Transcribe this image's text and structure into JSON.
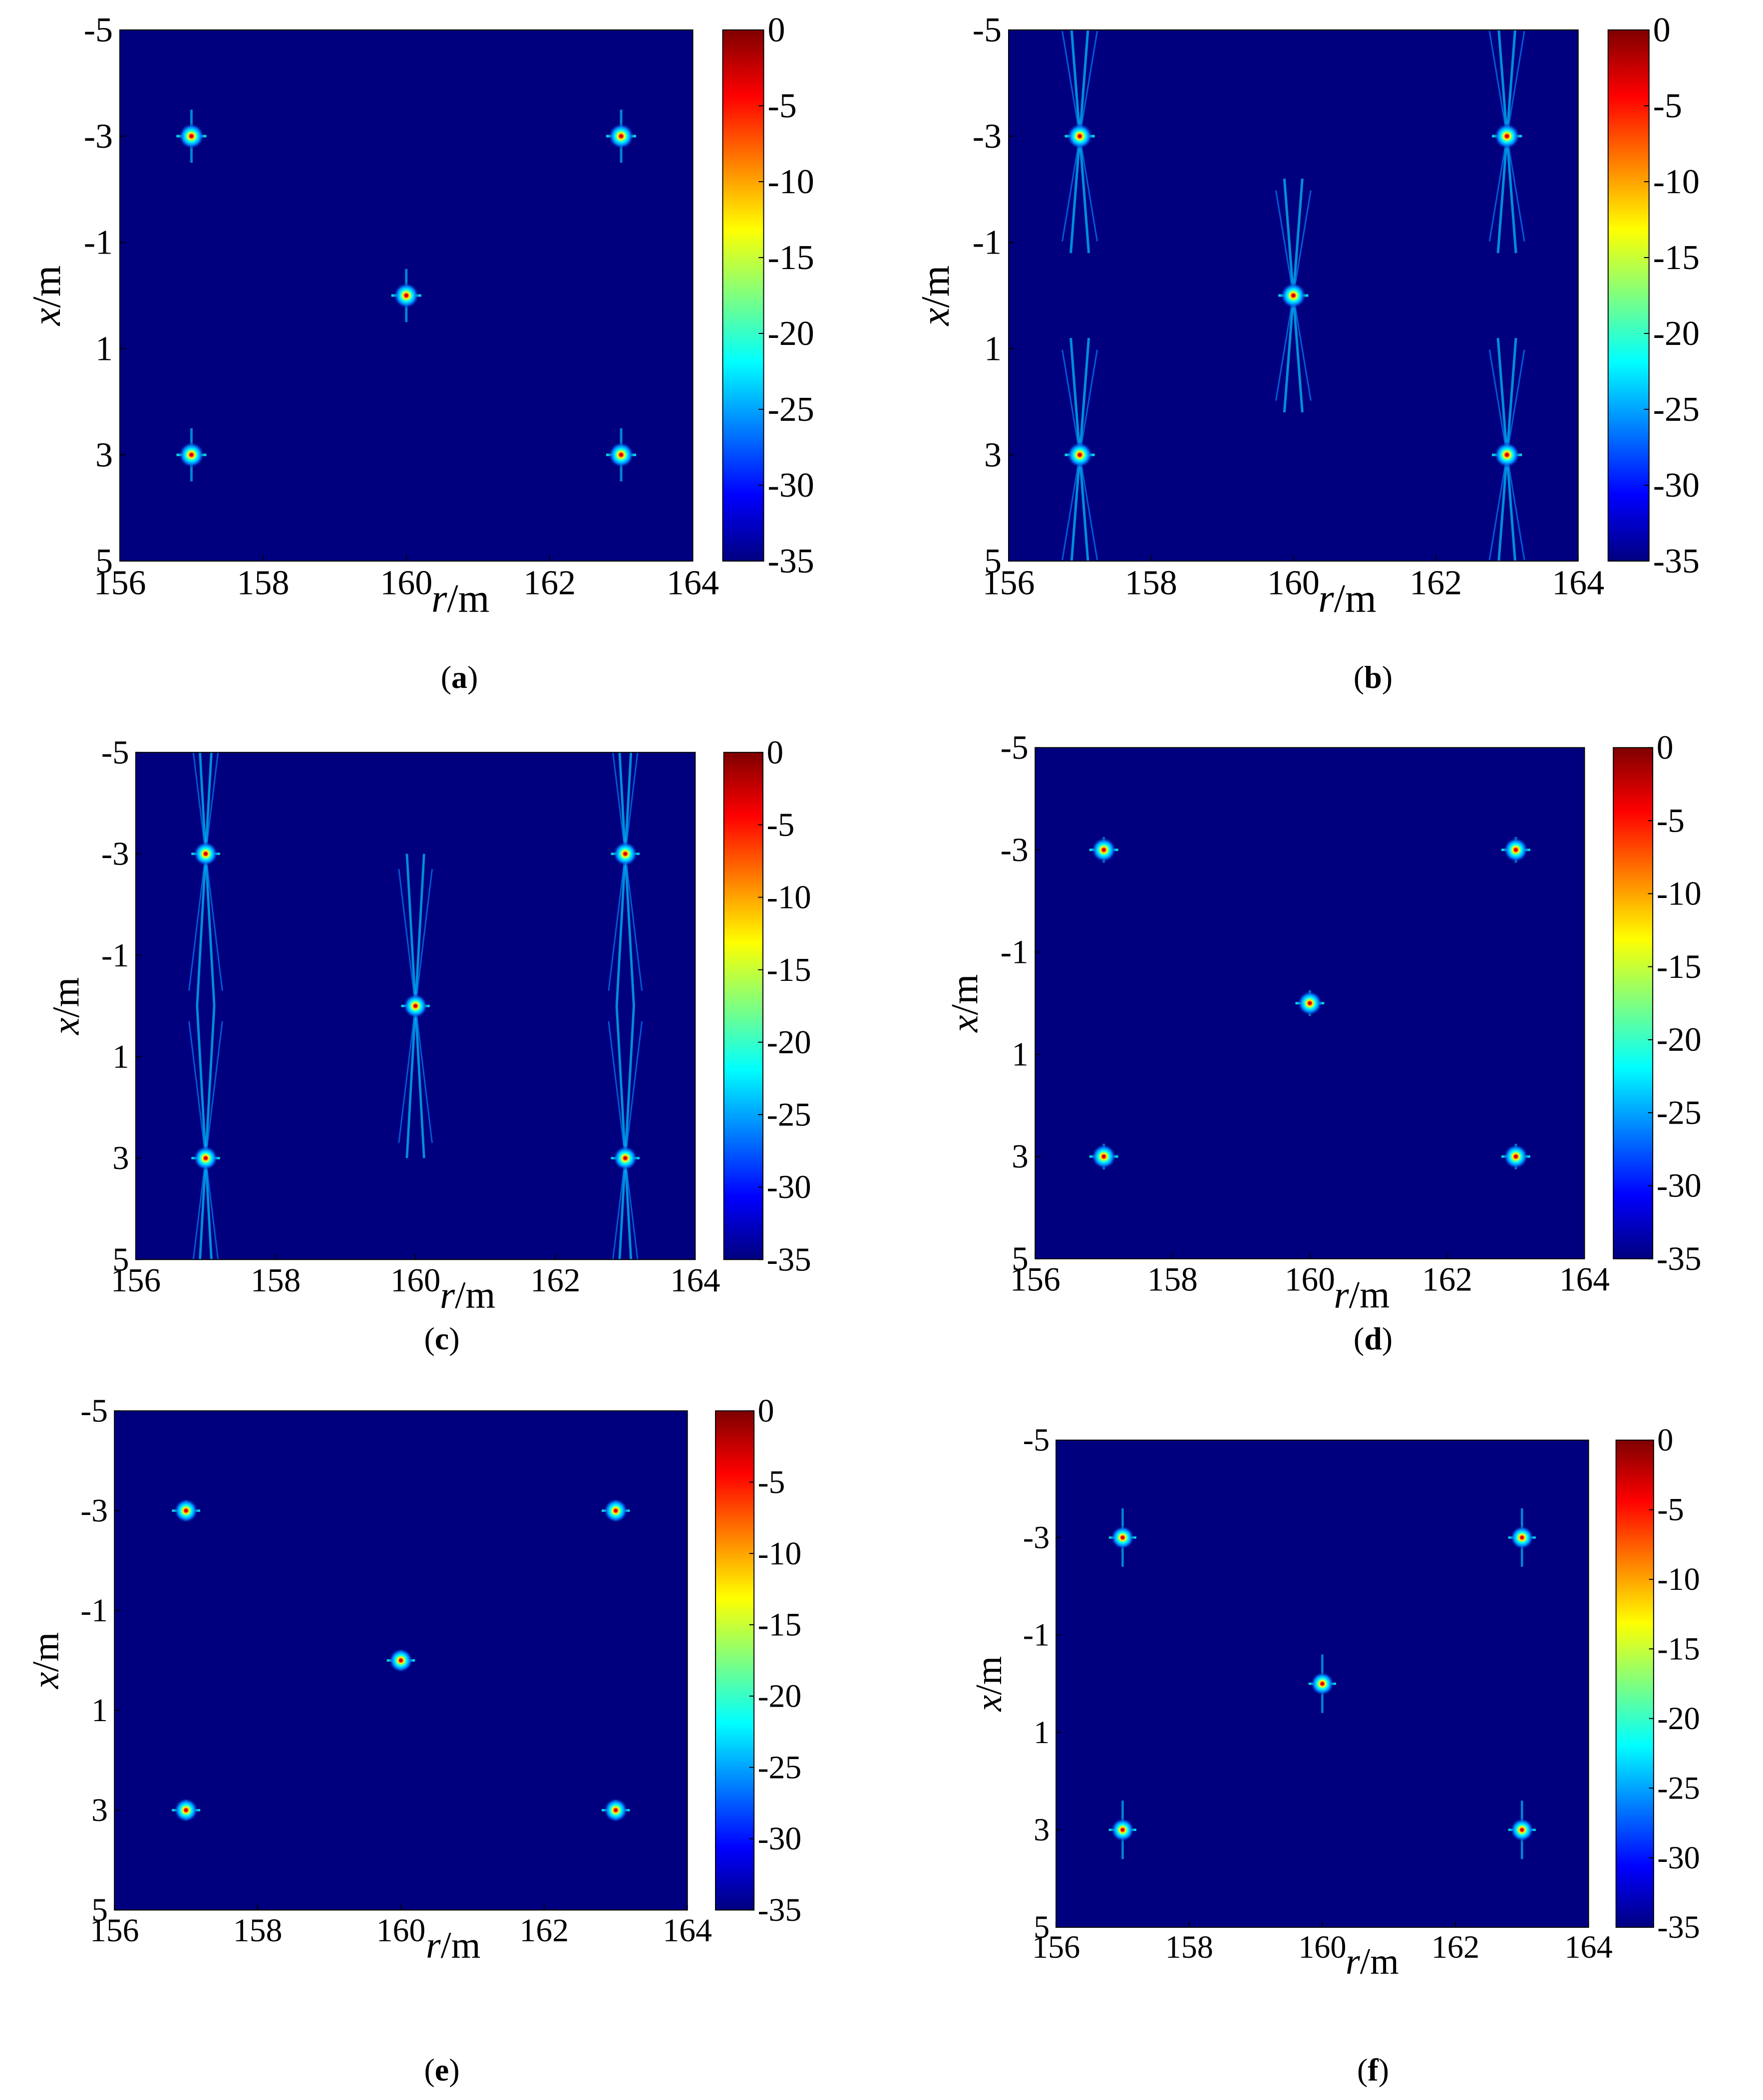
{
  "figure": {
    "captions": [
      "a",
      "b",
      "c",
      "d",
      "e",
      "f"
    ]
  },
  "colors": {
    "background": "#00007f",
    "colormap": [
      "#00007f",
      "#0000ff",
      "#007fff",
      "#00ffff",
      "#7fff7f",
      "#ffff00",
      "#ff7f00",
      "#ff0000",
      "#7f0000"
    ]
  },
  "chart_data": [
    {
      "type": "heatmap",
      "panel_label": "a",
      "xlabel_italic": "r",
      "xlabel_unit": "/m",
      "ylabel_italic": "x",
      "ylabel_unit": "/m",
      "xticks": [
        "156",
        "158",
        "160",
        "162",
        "164"
      ],
      "yticks": [
        "-5",
        "-3",
        "-1",
        "1",
        "3",
        "5"
      ],
      "xlim": [
        156,
        164
      ],
      "ylim": [
        -5,
        5
      ],
      "colorbar_ticks": [
        "0",
        "-5",
        "-10",
        "-15",
        "-20",
        "-25",
        "-30",
        "-35"
      ],
      "clim": [
        -35,
        0
      ],
      "targets": [
        {
          "r": 157,
          "x": -3
        },
        {
          "r": 163,
          "x": -3
        },
        {
          "r": 160,
          "x": 0
        },
        {
          "r": 157,
          "x": 3
        },
        {
          "r": 163,
          "x": 3
        }
      ],
      "sidelobe_spread": 1.0
    },
    {
      "type": "heatmap",
      "panel_label": "b",
      "xlabel_italic": "r",
      "xlabel_unit": "/m",
      "ylabel_italic": "x",
      "ylabel_unit": "/m",
      "xticks": [
        "156",
        "158",
        "160",
        "162",
        "164"
      ],
      "yticks": [
        "-5",
        "-3",
        "-1",
        "1",
        "3",
        "5"
      ],
      "xlim": [
        156,
        164
      ],
      "ylim": [
        -5,
        5
      ],
      "colorbar_ticks": [
        "0",
        "-5",
        "-10",
        "-15",
        "-20",
        "-25",
        "-30",
        "-35"
      ],
      "clim": [
        -35,
        0
      ],
      "targets": [
        {
          "r": 157,
          "x": -3
        },
        {
          "r": 163,
          "x": -3
        },
        {
          "r": 160,
          "x": 0
        },
        {
          "r": 157,
          "x": 3
        },
        {
          "r": 163,
          "x": 3
        }
      ],
      "sidelobe_spread": 2.2
    },
    {
      "type": "heatmap",
      "panel_label": "c",
      "xlabel_italic": "r",
      "xlabel_unit": "/m",
      "ylabel_italic": "x",
      "ylabel_unit": "/m",
      "xticks": [
        "156",
        "158",
        "160",
        "162",
        "164"
      ],
      "yticks": [
        "-5",
        "-3",
        "-1",
        "1",
        "3",
        "5"
      ],
      "xlim": [
        156,
        164
      ],
      "ylim": [
        -5,
        5
      ],
      "colorbar_ticks": [
        "0",
        "-5",
        "-10",
        "-15",
        "-20",
        "-25",
        "-30",
        "-35"
      ],
      "clim": [
        -35,
        0
      ],
      "targets": [
        {
          "r": 157,
          "x": -3
        },
        {
          "r": 163,
          "x": -3
        },
        {
          "r": 160,
          "x": 0
        },
        {
          "r": 157,
          "x": 3
        },
        {
          "r": 163,
          "x": 3
        }
      ],
      "sidelobe_spread": 3.0
    },
    {
      "type": "heatmap",
      "panel_label": "d",
      "xlabel_italic": "r",
      "xlabel_unit": "/m",
      "ylabel_italic": "x",
      "ylabel_unit": "/m",
      "xticks": [
        "156",
        "158",
        "160",
        "162",
        "164"
      ],
      "yticks": [
        "-5",
        "-3",
        "-1",
        "1",
        "3",
        "5"
      ],
      "xlim": [
        156,
        164
      ],
      "ylim": [
        -5,
        5
      ],
      "colorbar_ticks": [
        "0",
        "-5",
        "-10",
        "-15",
        "-20",
        "-25",
        "-30",
        "-35"
      ],
      "clim": [
        -35,
        0
      ],
      "targets": [
        {
          "r": 157,
          "x": -3
        },
        {
          "r": 163,
          "x": -3
        },
        {
          "r": 160,
          "x": 0
        },
        {
          "r": 157,
          "x": 3
        },
        {
          "r": 163,
          "x": 3
        }
      ],
      "sidelobe_spread": 0.5
    },
    {
      "type": "heatmap",
      "panel_label": "e",
      "xlabel_italic": "r",
      "xlabel_unit": "/m",
      "ylabel_italic": "x",
      "ylabel_unit": "/m",
      "xticks": [
        "156",
        "158",
        "160",
        "162",
        "164"
      ],
      "yticks": [
        "-5",
        "-3",
        "-1",
        "1",
        "3",
        "5"
      ],
      "xlim": [
        156,
        164
      ],
      "ylim": [
        -5,
        5
      ],
      "colorbar_ticks": [
        "0",
        "-5",
        "-10",
        "-15",
        "-20",
        "-25",
        "-30",
        "-35"
      ],
      "clim": [
        -35,
        0
      ],
      "targets": [
        {
          "r": 157,
          "x": -3
        },
        {
          "r": 163,
          "x": -3
        },
        {
          "r": 160,
          "x": 0
        },
        {
          "r": 157,
          "x": 3
        },
        {
          "r": 163,
          "x": 3
        }
      ],
      "sidelobe_spread": 0.4
    },
    {
      "type": "heatmap",
      "panel_label": "f",
      "xlabel_italic": "r",
      "xlabel_unit": "/m",
      "ylabel_italic": "x",
      "ylabel_unit": "/m",
      "xticks": [
        "156",
        "158",
        "160",
        "162",
        "164"
      ],
      "yticks": [
        "-5",
        "-3",
        "-1",
        "1",
        "3",
        "5"
      ],
      "xlim": [
        156,
        164
      ],
      "ylim": [
        -5,
        5
      ],
      "colorbar_ticks": [
        "0",
        "-5",
        "-10",
        "-15",
        "-20",
        "-25",
        "-30",
        "-35"
      ],
      "clim": [
        -35,
        0
      ],
      "targets": [
        {
          "r": 157,
          "x": -3
        },
        {
          "r": 163,
          "x": -3
        },
        {
          "r": 160,
          "x": 0
        },
        {
          "r": 157,
          "x": 3
        },
        {
          "r": 163,
          "x": 3
        }
      ],
      "sidelobe_spread": 1.2
    }
  ]
}
